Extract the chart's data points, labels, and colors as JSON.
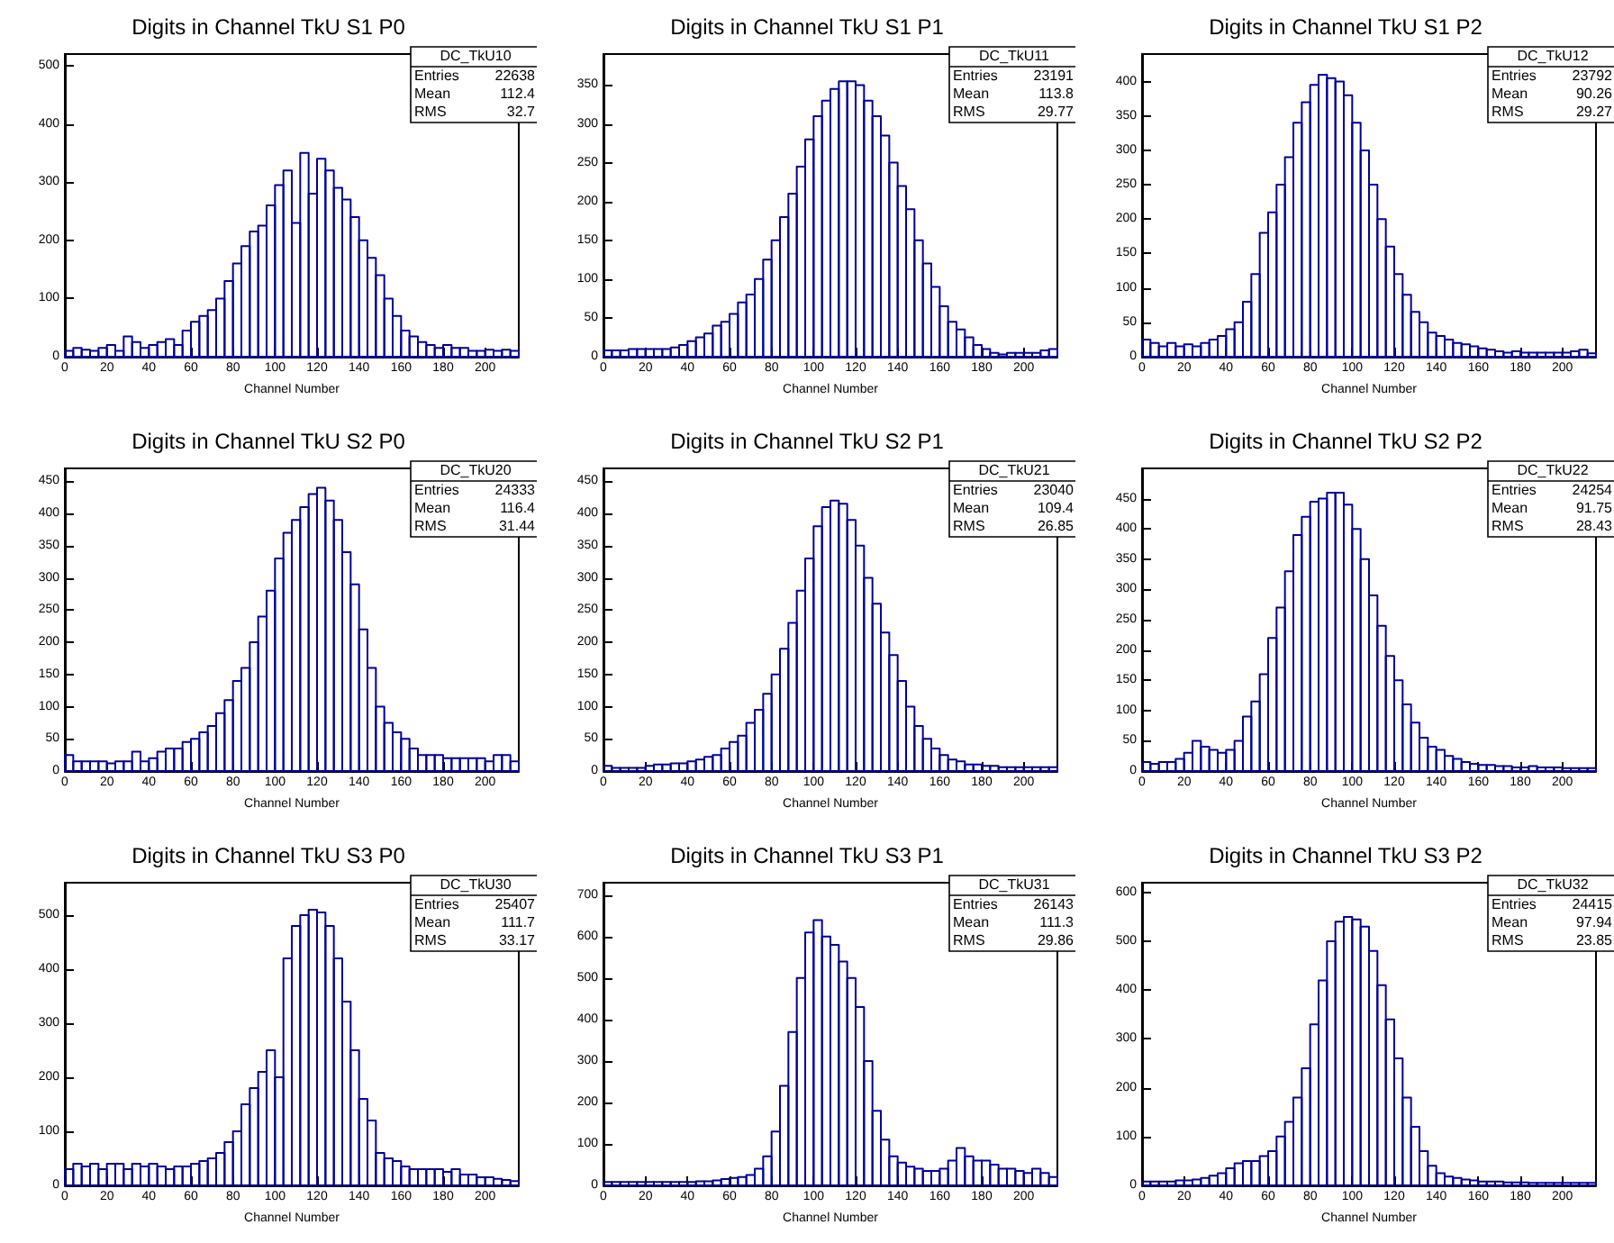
{
  "chart_data": [
    {
      "type": "histogram",
      "title": "Digits in Channel TkU S1 P0",
      "xlabel": "Channel Number",
      "color": "#000099",
      "annotations": [
        "DC_TkU10",
        "Entries 22638",
        "Mean 112.4",
        "RMS 32.7"
      ],
      "xlim": [
        0,
        216
      ],
      "xticks": [
        0,
        20,
        40,
        60,
        80,
        100,
        120,
        140,
        160,
        180,
        200
      ],
      "ylim": [
        0,
        520
      ],
      "yticks": [
        0,
        100,
        200,
        300,
        400,
        500
      ],
      "bins": [
        0,
        4,
        8,
        12,
        16,
        20,
        24,
        28,
        32,
        36,
        40,
        44,
        48,
        52,
        56,
        60,
        64,
        68,
        72,
        76,
        80,
        84,
        88,
        92,
        96,
        100,
        104,
        108,
        112,
        116,
        120,
        124,
        128,
        132,
        136,
        140,
        144,
        148,
        152,
        156,
        160,
        164,
        168,
        172,
        176,
        180,
        184,
        188,
        192,
        196,
        200,
        204,
        208,
        212,
        216
      ],
      "values": [
        10,
        15,
        12,
        10,
        15,
        20,
        10,
        35,
        25,
        15,
        20,
        25,
        30,
        20,
        45,
        60,
        70,
        80,
        100,
        130,
        160,
        190,
        215,
        225,
        260,
        295,
        320,
        230,
        350,
        280,
        340,
        320,
        290,
        270,
        240,
        200,
        170,
        140,
        100,
        70,
        45,
        35,
        25,
        20,
        15,
        20,
        15,
        15,
        10,
        10,
        12,
        10,
        12,
        10
      ]
    },
    {
      "type": "histogram",
      "title": "Digits in Channel TkU S1 P1",
      "xlabel": "Channel Number",
      "color": "#000099",
      "annotations": [
        "DC_TkU11",
        "Entries 23191",
        "Mean 113.8",
        "RMS 29.77"
      ],
      "xlim": [
        0,
        216
      ],
      "xticks": [
        0,
        20,
        40,
        60,
        80,
        100,
        120,
        140,
        160,
        180,
        200
      ],
      "ylim": [
        0,
        390
      ],
      "yticks": [
        0,
        50,
        100,
        150,
        200,
        250,
        300,
        350
      ],
      "bins": [
        0,
        4,
        8,
        12,
        16,
        20,
        24,
        28,
        32,
        36,
        40,
        44,
        48,
        52,
        56,
        60,
        64,
        68,
        72,
        76,
        80,
        84,
        88,
        92,
        96,
        100,
        104,
        108,
        112,
        116,
        120,
        124,
        128,
        132,
        136,
        140,
        144,
        148,
        152,
        156,
        160,
        164,
        168,
        172,
        176,
        180,
        184,
        188,
        192,
        196,
        200,
        204,
        208,
        212,
        216
      ],
      "values": [
        8,
        8,
        8,
        10,
        10,
        10,
        10,
        10,
        12,
        15,
        20,
        25,
        30,
        40,
        45,
        55,
        70,
        80,
        100,
        125,
        150,
        180,
        210,
        245,
        280,
        310,
        330,
        345,
        355,
        355,
        350,
        330,
        310,
        285,
        250,
        220,
        190,
        150,
        120,
        90,
        65,
        45,
        35,
        25,
        15,
        10,
        5,
        3,
        5,
        5,
        5,
        5,
        8,
        10
      ]
    },
    {
      "type": "histogram",
      "title": "Digits in Channel TkU S1 P2",
      "xlabel": "Channel Number",
      "color": "#000099",
      "annotations": [
        "DC_TkU12",
        "Entries 23792",
        "Mean 90.26",
        "RMS 29.27"
      ],
      "xlim": [
        0,
        216
      ],
      "xticks": [
        0,
        20,
        40,
        60,
        80,
        100,
        120,
        140,
        160,
        180,
        200
      ],
      "ylim": [
        0,
        440
      ],
      "yticks": [
        0,
        50,
        100,
        150,
        200,
        250,
        300,
        350,
        400
      ],
      "bins": [
        0,
        4,
        8,
        12,
        16,
        20,
        24,
        28,
        32,
        36,
        40,
        44,
        48,
        52,
        56,
        60,
        64,
        68,
        72,
        76,
        80,
        84,
        88,
        92,
        96,
        100,
        104,
        108,
        112,
        116,
        120,
        124,
        128,
        132,
        136,
        140,
        144,
        148,
        152,
        156,
        160,
        164,
        168,
        172,
        176,
        180,
        184,
        188,
        192,
        196,
        200,
        204,
        208,
        212,
        216
      ],
      "values": [
        25,
        20,
        15,
        20,
        15,
        18,
        15,
        20,
        25,
        30,
        40,
        50,
        80,
        120,
        180,
        210,
        250,
        290,
        340,
        370,
        395,
        410,
        405,
        400,
        380,
        340,
        300,
        250,
        200,
        160,
        120,
        90,
        65,
        50,
        35,
        30,
        25,
        20,
        18,
        15,
        12,
        10,
        8,
        6,
        8,
        6,
        6,
        6,
        6,
        6,
        6,
        8,
        10,
        5
      ]
    },
    {
      "type": "histogram",
      "title": "Digits in Channel TkU S2 P0",
      "xlabel": "Channel Number",
      "color": "#000099",
      "annotations": [
        "DC_TkU20",
        "Entries 24333",
        "Mean 116.4",
        "RMS 31.44"
      ],
      "xlim": [
        0,
        216
      ],
      "xticks": [
        0,
        20,
        40,
        60,
        80,
        100,
        120,
        140,
        160,
        180,
        200
      ],
      "ylim": [
        0,
        470
      ],
      "yticks": [
        0,
        50,
        100,
        150,
        200,
        250,
        300,
        350,
        400,
        450
      ],
      "bins": [
        0,
        4,
        8,
        12,
        16,
        20,
        24,
        28,
        32,
        36,
        40,
        44,
        48,
        52,
        56,
        60,
        64,
        68,
        72,
        76,
        80,
        84,
        88,
        92,
        96,
        100,
        104,
        108,
        112,
        116,
        120,
        124,
        128,
        132,
        136,
        140,
        144,
        148,
        152,
        156,
        160,
        164,
        168,
        172,
        176,
        180,
        184,
        188,
        192,
        196,
        200,
        204,
        208,
        212,
        216
      ],
      "values": [
        25,
        15,
        15,
        15,
        15,
        12,
        15,
        15,
        30,
        15,
        20,
        30,
        35,
        35,
        45,
        50,
        60,
        70,
        90,
        110,
        140,
        160,
        200,
        240,
        280,
        330,
        370,
        390,
        410,
        430,
        440,
        420,
        390,
        340,
        290,
        220,
        160,
        100,
        75,
        60,
        50,
        35,
        25,
        25,
        25,
        20,
        20,
        20,
        20,
        20,
        15,
        25,
        25,
        15
      ]
    },
    {
      "type": "histogram",
      "title": "Digits in Channel TkU S2 P1",
      "xlabel": "Channel Number",
      "color": "#000099",
      "annotations": [
        "DC_TkU21",
        "Entries 23040",
        "Mean 109.4",
        "RMS 26.85"
      ],
      "xlim": [
        0,
        216
      ],
      "xticks": [
        0,
        20,
        40,
        60,
        80,
        100,
        120,
        140,
        160,
        180,
        200
      ],
      "ylim": [
        0,
        470
      ],
      "yticks": [
        0,
        50,
        100,
        150,
        200,
        250,
        300,
        350,
        400,
        450
      ],
      "bins": [
        0,
        4,
        8,
        12,
        16,
        20,
        24,
        28,
        32,
        36,
        40,
        44,
        48,
        52,
        56,
        60,
        64,
        68,
        72,
        76,
        80,
        84,
        88,
        92,
        96,
        100,
        104,
        108,
        112,
        116,
        120,
        124,
        128,
        132,
        136,
        140,
        144,
        148,
        152,
        156,
        160,
        164,
        168,
        172,
        176,
        180,
        184,
        188,
        192,
        196,
        200,
        204,
        208,
        212,
        216
      ],
      "values": [
        8,
        5,
        5,
        5,
        5,
        8,
        10,
        10,
        12,
        12,
        15,
        18,
        22,
        25,
        35,
        45,
        55,
        75,
        95,
        120,
        150,
        190,
        230,
        280,
        330,
        380,
        410,
        420,
        415,
        390,
        350,
        300,
        260,
        215,
        180,
        140,
        100,
        70,
        50,
        35,
        25,
        18,
        15,
        10,
        10,
        8,
        8,
        6,
        6,
        6,
        6,
        6,
        6,
        6
      ]
    },
    {
      "type": "histogram",
      "title": "Digits in Channel TkU S2 P2",
      "xlabel": "Channel Number",
      "color": "#000099",
      "annotations": [
        "DC_TkU22",
        "Entries 24254",
        "Mean 91.75",
        "RMS 28.43"
      ],
      "xlim": [
        0,
        216
      ],
      "xticks": [
        0,
        20,
        40,
        60,
        80,
        100,
        120,
        140,
        160,
        180,
        200
      ],
      "ylim": [
        0,
        500
      ],
      "yticks": [
        0,
        50,
        100,
        150,
        200,
        250,
        300,
        350,
        400,
        450
      ],
      "bins": [
        0,
        4,
        8,
        12,
        16,
        20,
        24,
        28,
        32,
        36,
        40,
        44,
        48,
        52,
        56,
        60,
        64,
        68,
        72,
        76,
        80,
        84,
        88,
        92,
        96,
        100,
        104,
        108,
        112,
        116,
        120,
        124,
        128,
        132,
        136,
        140,
        144,
        148,
        152,
        156,
        160,
        164,
        168,
        172,
        176,
        180,
        184,
        188,
        192,
        196,
        200,
        204,
        208,
        212,
        216
      ],
      "values": [
        15,
        12,
        15,
        15,
        20,
        30,
        50,
        40,
        35,
        30,
        35,
        50,
        90,
        115,
        160,
        220,
        270,
        330,
        390,
        420,
        445,
        450,
        460,
        460,
        440,
        400,
        350,
        290,
        240,
        190,
        150,
        110,
        80,
        55,
        40,
        35,
        25,
        20,
        15,
        12,
        10,
        10,
        8,
        8,
        6,
        6,
        8,
        6,
        6,
        6,
        5,
        5,
        5,
        5
      ]
    },
    {
      "type": "histogram",
      "title": "Digits in Channel TkU S3 P0",
      "xlabel": "Channel Number",
      "color": "#000099",
      "annotations": [
        "DC_TkU30",
        "Entries 25407",
        "Mean 111.7",
        "RMS 33.17"
      ],
      "xlim": [
        0,
        216
      ],
      "xticks": [
        0,
        20,
        40,
        60,
        80,
        100,
        120,
        140,
        160,
        180,
        200
      ],
      "ylim": [
        0,
        560
      ],
      "yticks": [
        0,
        100,
        200,
        300,
        400,
        500
      ],
      "bins": [
        0,
        4,
        8,
        12,
        16,
        20,
        24,
        28,
        32,
        36,
        40,
        44,
        48,
        52,
        56,
        60,
        64,
        68,
        72,
        76,
        80,
        84,
        88,
        92,
        96,
        100,
        104,
        108,
        112,
        116,
        120,
        124,
        128,
        132,
        136,
        140,
        144,
        148,
        152,
        156,
        160,
        164,
        168,
        172,
        176,
        180,
        184,
        188,
        192,
        196,
        200,
        204,
        208,
        212,
        216
      ],
      "values": [
        30,
        40,
        35,
        40,
        30,
        40,
        40,
        30,
        40,
        35,
        40,
        35,
        30,
        35,
        35,
        40,
        45,
        50,
        60,
        80,
        100,
        150,
        180,
        210,
        250,
        200,
        420,
        480,
        500,
        510,
        505,
        480,
        420,
        340,
        250,
        160,
        120,
        60,
        50,
        45,
        35,
        30,
        30,
        30,
        30,
        25,
        30,
        20,
        20,
        15,
        15,
        12,
        10,
        8
      ]
    },
    {
      "type": "histogram",
      "title": "Digits in Channel TkU S3 P1",
      "xlabel": "Channel Number",
      "color": "#000099",
      "annotations": [
        "DC_TkU31",
        "Entries 26143",
        "Mean 111.3",
        "RMS 29.86"
      ],
      "xlim": [
        0,
        216
      ],
      "xticks": [
        0,
        20,
        40,
        60,
        80,
        100,
        120,
        140,
        160,
        180,
        200
      ],
      "ylim": [
        0,
        730
      ],
      "yticks": [
        0,
        100,
        200,
        300,
        400,
        500,
        600,
        700
      ],
      "bins": [
        0,
        4,
        8,
        12,
        16,
        20,
        24,
        28,
        32,
        36,
        40,
        44,
        48,
        52,
        56,
        60,
        64,
        68,
        72,
        76,
        80,
        84,
        88,
        92,
        96,
        100,
        104,
        108,
        112,
        116,
        120,
        124,
        128,
        132,
        136,
        140,
        144,
        148,
        152,
        156,
        160,
        164,
        168,
        172,
        176,
        180,
        184,
        188,
        192,
        196,
        200,
        204,
        208,
        212,
        216
      ],
      "values": [
        8,
        8,
        8,
        8,
        8,
        8,
        8,
        8,
        8,
        8,
        8,
        10,
        10,
        12,
        15,
        18,
        20,
        25,
        40,
        70,
        130,
        240,
        370,
        500,
        610,
        640,
        600,
        580,
        540,
        500,
        430,
        300,
        180,
        110,
        70,
        55,
        45,
        40,
        35,
        35,
        40,
        60,
        90,
        70,
        60,
        60,
        50,
        40,
        40,
        35,
        30,
        40,
        30,
        20
      ]
    },
    {
      "type": "histogram",
      "title": "Digits in Channel TkU S3 P2",
      "xlabel": "Channel Number",
      "color": "#000099",
      "annotations": [
        "DC_TkU32",
        "Entries 24415",
        "Mean 97.94",
        "RMS 23.85"
      ],
      "xlim": [
        0,
        216
      ],
      "xticks": [
        0,
        20,
        40,
        60,
        80,
        100,
        120,
        140,
        160,
        180,
        200
      ],
      "ylim": [
        0,
        620
      ],
      "yticks": [
        0,
        100,
        200,
        300,
        400,
        500,
        600
      ],
      "bins": [
        0,
        4,
        8,
        12,
        16,
        20,
        24,
        28,
        32,
        36,
        40,
        44,
        48,
        52,
        56,
        60,
        64,
        68,
        72,
        76,
        80,
        84,
        88,
        92,
        96,
        100,
        104,
        108,
        112,
        116,
        120,
        124,
        128,
        132,
        136,
        140,
        144,
        148,
        152,
        156,
        160,
        164,
        168,
        172,
        176,
        180,
        184,
        188,
        192,
        196,
        200,
        204,
        208,
        212,
        216
      ],
      "values": [
        8,
        8,
        8,
        8,
        10,
        10,
        12,
        15,
        20,
        25,
        35,
        45,
        50,
        50,
        60,
        70,
        100,
        130,
        180,
        240,
        330,
        420,
        500,
        540,
        550,
        545,
        530,
        480,
        410,
        340,
        260,
        180,
        120,
        70,
        40,
        25,
        18,
        15,
        12,
        10,
        8,
        8,
        8,
        6,
        6,
        6,
        5,
        5,
        5,
        5,
        5,
        5,
        5,
        5
      ]
    }
  ]
}
